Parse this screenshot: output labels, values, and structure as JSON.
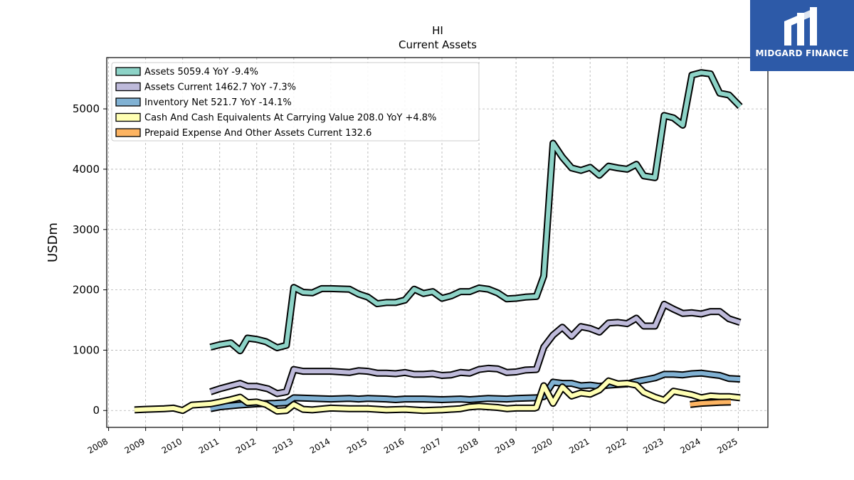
{
  "brand": {
    "name": "MIDGARD FINANCE",
    "logo": "midgard-logo-icon",
    "color": "#2d5aa8"
  },
  "chart_data": {
    "type": "line",
    "title": "HI",
    "subtitle": "Current  Assets",
    "xlabel": "",
    "ylabel": "USDm",
    "xlim": [
      2007.95,
      2025.8
    ],
    "ylim": [
      -280,
      5850
    ],
    "x_ticks": [
      "2008",
      "2009",
      "2010",
      "2011",
      "2012",
      "2013",
      "2014",
      "2015",
      "2016",
      "2017",
      "2018",
      "2019",
      "2020",
      "2021",
      "2022",
      "2023",
      "2024",
      "2025"
    ],
    "y_ticks": [
      0,
      1000,
      2000,
      3000,
      4000,
      5000
    ],
    "y_tick_labels": [
      "0",
      "1000",
      "2000",
      "3000",
      "4000",
      "5000"
    ],
    "grid": true,
    "legend_position": "top-left",
    "series": [
      {
        "name": "Assets  5059.4 YoY -9.4%",
        "color": "#8dd3c7",
        "points": [
          [
            2010.75,
            1050
          ],
          [
            2011.0,
            1090
          ],
          [
            2011.3,
            1120
          ],
          [
            2011.55,
            990
          ],
          [
            2011.75,
            1200
          ],
          [
            2012.0,
            1180
          ],
          [
            2012.25,
            1140
          ],
          [
            2012.55,
            1040
          ],
          [
            2012.8,
            1080
          ],
          [
            2013.0,
            2040
          ],
          [
            2013.25,
            1960
          ],
          [
            2013.5,
            1950
          ],
          [
            2013.75,
            2020
          ],
          [
            2014.0,
            2020
          ],
          [
            2014.5,
            2010
          ],
          [
            2014.75,
            1930
          ],
          [
            2015.0,
            1880
          ],
          [
            2015.25,
            1770
          ],
          [
            2015.5,
            1790
          ],
          [
            2015.75,
            1790
          ],
          [
            2016.0,
            1830
          ],
          [
            2016.25,
            2010
          ],
          [
            2016.5,
            1940
          ],
          [
            2016.75,
            1970
          ],
          [
            2017.0,
            1860
          ],
          [
            2017.25,
            1900
          ],
          [
            2017.5,
            1970
          ],
          [
            2017.75,
            1970
          ],
          [
            2018.0,
            2030
          ],
          [
            2018.25,
            2010
          ],
          [
            2018.5,
            1950
          ],
          [
            2018.75,
            1850
          ],
          [
            2019.0,
            1860
          ],
          [
            2019.25,
            1880
          ],
          [
            2019.55,
            1890
          ],
          [
            2019.75,
            2230
          ],
          [
            2020.0,
            4430
          ],
          [
            2020.25,
            4200
          ],
          [
            2020.5,
            4020
          ],
          [
            2020.75,
            3980
          ],
          [
            2021.0,
            4030
          ],
          [
            2021.25,
            3900
          ],
          [
            2021.5,
            4050
          ],
          [
            2021.75,
            4020
          ],
          [
            2022.0,
            4000
          ],
          [
            2022.25,
            4080
          ],
          [
            2022.45,
            3890
          ],
          [
            2022.75,
            3860
          ],
          [
            2023.0,
            4890
          ],
          [
            2023.25,
            4850
          ],
          [
            2023.5,
            4730
          ],
          [
            2023.75,
            5560
          ],
          [
            2024.0,
            5600
          ],
          [
            2024.25,
            5580
          ],
          [
            2024.5,
            5260
          ],
          [
            2024.75,
            5230
          ],
          [
            2025.05,
            5040
          ]
        ]
      },
      {
        "name": "Assets Current  1462.7 YoY -7.3%",
        "color": "#bebada",
        "points": [
          [
            2010.75,
            310
          ],
          [
            2011.0,
            360
          ],
          [
            2011.3,
            410
          ],
          [
            2011.55,
            450
          ],
          [
            2011.75,
            400
          ],
          [
            2012.0,
            400
          ],
          [
            2012.3,
            360
          ],
          [
            2012.55,
            280
          ],
          [
            2012.8,
            310
          ],
          [
            2013.0,
            680
          ],
          [
            2013.25,
            650
          ],
          [
            2013.5,
            650
          ],
          [
            2014.0,
            650
          ],
          [
            2014.5,
            630
          ],
          [
            2014.75,
            660
          ],
          [
            2015.0,
            650
          ],
          [
            2015.25,
            620
          ],
          [
            2015.5,
            620
          ],
          [
            2015.75,
            610
          ],
          [
            2016.0,
            630
          ],
          [
            2016.25,
            600
          ],
          [
            2016.5,
            600
          ],
          [
            2016.75,
            610
          ],
          [
            2017.0,
            580
          ],
          [
            2017.25,
            590
          ],
          [
            2017.5,
            630
          ],
          [
            2017.75,
            620
          ],
          [
            2018.0,
            680
          ],
          [
            2018.25,
            700
          ],
          [
            2018.5,
            690
          ],
          [
            2018.75,
            630
          ],
          [
            2019.0,
            640
          ],
          [
            2019.25,
            670
          ],
          [
            2019.55,
            680
          ],
          [
            2019.75,
            1050
          ],
          [
            2020.0,
            1250
          ],
          [
            2020.25,
            1380
          ],
          [
            2020.5,
            1230
          ],
          [
            2020.75,
            1390
          ],
          [
            2021.0,
            1360
          ],
          [
            2021.25,
            1300
          ],
          [
            2021.5,
            1450
          ],
          [
            2021.75,
            1460
          ],
          [
            2022.0,
            1440
          ],
          [
            2022.25,
            1530
          ],
          [
            2022.45,
            1400
          ],
          [
            2022.75,
            1400
          ],
          [
            2023.0,
            1760
          ],
          [
            2023.25,
            1680
          ],
          [
            2023.5,
            1610
          ],
          [
            2023.75,
            1620
          ],
          [
            2024.0,
            1600
          ],
          [
            2024.25,
            1640
          ],
          [
            2024.5,
            1640
          ],
          [
            2024.75,
            1520
          ],
          [
            2025.05,
            1460
          ]
        ]
      },
      {
        "name": "Inventory Net  521.7 YoY -14.1%",
        "color": "#80b1d3",
        "points": [
          [
            2010.75,
            30
          ],
          [
            2011.0,
            60
          ],
          [
            2011.5,
            90
          ],
          [
            2012.0,
            110
          ],
          [
            2012.5,
            120
          ],
          [
            2012.8,
            130
          ],
          [
            2013.0,
            210
          ],
          [
            2013.5,
            200
          ],
          [
            2014.0,
            190
          ],
          [
            2014.5,
            200
          ],
          [
            2014.75,
            190
          ],
          [
            2015.0,
            200
          ],
          [
            2015.5,
            190
          ],
          [
            2015.75,
            180
          ],
          [
            2016.0,
            190
          ],
          [
            2016.5,
            190
          ],
          [
            2017.0,
            180
          ],
          [
            2017.5,
            190
          ],
          [
            2017.75,
            180
          ],
          [
            2018.0,
            190
          ],
          [
            2018.25,
            200
          ],
          [
            2018.75,
            190
          ],
          [
            2019.0,
            200
          ],
          [
            2019.55,
            210
          ],
          [
            2019.75,
            230
          ],
          [
            2020.0,
            470
          ],
          [
            2020.25,
            450
          ],
          [
            2020.5,
            450
          ],
          [
            2020.75,
            410
          ],
          [
            2021.0,
            420
          ],
          [
            2021.25,
            400
          ],
          [
            2021.5,
            420
          ],
          [
            2021.75,
            430
          ],
          [
            2022.0,
            440
          ],
          [
            2022.25,
            480
          ],
          [
            2022.5,
            510
          ],
          [
            2022.75,
            540
          ],
          [
            2023.0,
            600
          ],
          [
            2023.25,
            600
          ],
          [
            2023.5,
            590
          ],
          [
            2023.75,
            610
          ],
          [
            2024.0,
            620
          ],
          [
            2024.25,
            600
          ],
          [
            2024.5,
            580
          ],
          [
            2024.75,
            530
          ],
          [
            2025.05,
            520
          ]
        ]
      },
      {
        "name": "Cash And Cash Equivalents At Carrying Value  208.0 YoY +4.8%",
        "color": "#ffffb3",
        "points": [
          [
            2008.7,
            10
          ],
          [
            2009.0,
            20
          ],
          [
            2009.5,
            30
          ],
          [
            2009.75,
            40
          ],
          [
            2010.0,
            0
          ],
          [
            2010.25,
            90
          ],
          [
            2010.5,
            100
          ],
          [
            2010.75,
            110
          ],
          [
            2011.0,
            140
          ],
          [
            2011.3,
            180
          ],
          [
            2011.55,
            220
          ],
          [
            2011.75,
            130
          ],
          [
            2012.0,
            140
          ],
          [
            2012.25,
            100
          ],
          [
            2012.55,
            -10
          ],
          [
            2012.8,
            0
          ],
          [
            2013.0,
            100
          ],
          [
            2013.25,
            20
          ],
          [
            2013.5,
            10
          ],
          [
            2014.0,
            40
          ],
          [
            2014.5,
            30
          ],
          [
            2015.0,
            30
          ],
          [
            2015.5,
            10
          ],
          [
            2016.0,
            20
          ],
          [
            2016.5,
            0
          ],
          [
            2017.0,
            10
          ],
          [
            2017.5,
            30
          ],
          [
            2017.75,
            60
          ],
          [
            2018.0,
            70
          ],
          [
            2018.5,
            50
          ],
          [
            2018.75,
            30
          ],
          [
            2019.0,
            40
          ],
          [
            2019.5,
            40
          ],
          [
            2019.55,
            50
          ],
          [
            2019.75,
            410
          ],
          [
            2020.0,
            120
          ],
          [
            2020.25,
            390
          ],
          [
            2020.5,
            240
          ],
          [
            2020.75,
            290
          ],
          [
            2021.0,
            270
          ],
          [
            2021.25,
            340
          ],
          [
            2021.5,
            490
          ],
          [
            2021.75,
            440
          ],
          [
            2022.0,
            450
          ],
          [
            2022.25,
            420
          ],
          [
            2022.45,
            300
          ],
          [
            2022.75,
            220
          ],
          [
            2023.0,
            170
          ],
          [
            2023.25,
            320
          ],
          [
            2023.5,
            290
          ],
          [
            2023.75,
            260
          ],
          [
            2024.0,
            210
          ],
          [
            2024.25,
            240
          ],
          [
            2024.5,
            230
          ],
          [
            2024.75,
            230
          ],
          [
            2025.05,
            210
          ]
        ]
      },
      {
        "name": "Prepaid Expense And Other Assets Current  132.6",
        "color": "#fdb462",
        "points": [
          [
            2023.7,
            100
          ],
          [
            2024.0,
            120
          ],
          [
            2024.5,
            135
          ],
          [
            2024.8,
            140
          ]
        ]
      }
    ]
  }
}
